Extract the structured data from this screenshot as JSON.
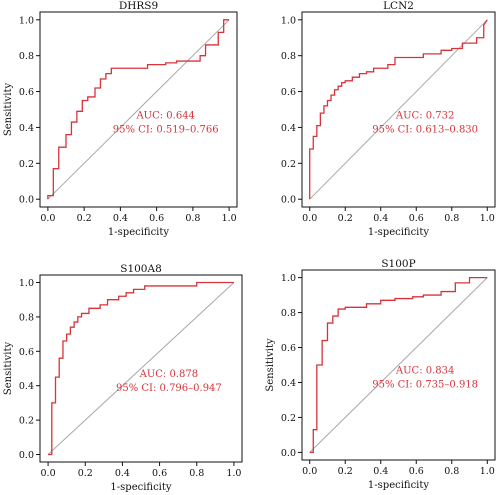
{
  "colors": {
    "roc_curve": "#d6343a",
    "reference_line": "#a8a8a8",
    "annotation": "#d6343a"
  },
  "chart_data": [
    {
      "type": "line",
      "title": "DHRS9",
      "xlabel": "1-specificity",
      "ylabel": "Sensitivity",
      "xlim": [
        0,
        1
      ],
      "ylim": [
        0,
        1
      ],
      "x_ticks": [
        "0.0",
        "0.2",
        "0.4",
        "0.6",
        "0.8",
        "1.0"
      ],
      "y_ticks": [
        "0.0",
        "0.2",
        "0.4",
        "0.6",
        "0.8",
        "1.0"
      ],
      "auc_text": "AUC: 0.644",
      "ci_text": "95% CI: 0.519–0.766",
      "grid": false,
      "series": [
        {
          "x": [
            0,
            0,
            0.03,
            0.03,
            0.06,
            0.06,
            0.1,
            0.1,
            0.13,
            0.13,
            0.16,
            0.16,
            0.19,
            0.19,
            0.22,
            0.22,
            0.26,
            0.26,
            0.29,
            0.29,
            0.32,
            0.32,
            0.35,
            0.35,
            0.42,
            0.42,
            0.55,
            0.55,
            0.65,
            0.65,
            0.71,
            0.71,
            0.84,
            0.84,
            0.87,
            0.87,
            0.94,
            0.94,
            0.97,
            0.97,
            1
          ],
          "y": [
            0,
            0.02,
            0.02,
            0.17,
            0.17,
            0.29,
            0.29,
            0.36,
            0.36,
            0.43,
            0.43,
            0.49,
            0.49,
            0.55,
            0.55,
            0.57,
            0.57,
            0.62,
            0.62,
            0.67,
            0.67,
            0.7,
            0.7,
            0.73,
            0.73,
            0.73,
            0.73,
            0.75,
            0.75,
            0.76,
            0.76,
            0.77,
            0.77,
            0.8,
            0.8,
            0.86,
            0.86,
            0.93,
            0.93,
            1,
            1
          ]
        }
      ]
    },
    {
      "type": "line",
      "title": "LCN2",
      "xlabel": "1-specificity",
      "ylabel": "",
      "xlim": [
        0,
        1
      ],
      "ylim": [
        0,
        1
      ],
      "x_ticks": [
        "0.0",
        "0.2",
        "0.4",
        "0.6",
        "0.8",
        "1.0"
      ],
      "y_ticks": [
        "0.0",
        "0.2",
        "0.4",
        "0.6",
        "0.8",
        "1.0"
      ],
      "auc_text": "AUC: 0.732",
      "ci_text": "95% CI: 0.613–0.830",
      "grid": false,
      "series": [
        {
          "x": [
            0,
            0,
            0.02,
            0.02,
            0.04,
            0.04,
            0.06,
            0.06,
            0.08,
            0.08,
            0.1,
            0.1,
            0.12,
            0.12,
            0.14,
            0.14,
            0.16,
            0.16,
            0.18,
            0.18,
            0.2,
            0.2,
            0.24,
            0.24,
            0.28,
            0.28,
            0.32,
            0.32,
            0.36,
            0.36,
            0.44,
            0.44,
            0.48,
            0.48,
            0.64,
            0.64,
            0.74,
            0.74,
            0.8,
            0.8,
            0.86,
            0.86,
            0.94,
            0.94,
            0.98,
            0.98,
            1
          ],
          "y": [
            0,
            0.28,
            0.28,
            0.35,
            0.35,
            0.41,
            0.41,
            0.48,
            0.48,
            0.52,
            0.52,
            0.55,
            0.55,
            0.58,
            0.58,
            0.61,
            0.61,
            0.63,
            0.63,
            0.65,
            0.65,
            0.66,
            0.66,
            0.68,
            0.68,
            0.7,
            0.7,
            0.71,
            0.71,
            0.73,
            0.73,
            0.75,
            0.75,
            0.79,
            0.79,
            0.81,
            0.81,
            0.83,
            0.83,
            0.84,
            0.84,
            0.87,
            0.87,
            0.9,
            0.9,
            0.97,
            1
          ]
        }
      ]
    },
    {
      "type": "line",
      "title": "S100A8",
      "xlabel": "1-specificity",
      "ylabel": "Sensitivity",
      "xlim": [
        0,
        1
      ],
      "ylim": [
        0,
        1
      ],
      "x_ticks": [
        "0.0",
        "0.2",
        "0.4",
        "0.6",
        "0.8",
        "1.0"
      ],
      "y_ticks": [
        "0.0",
        "0.2",
        "0.4",
        "0.6",
        "0.8",
        "1.0"
      ],
      "auc_text": "AUC: 0.878",
      "ci_text": "95% CI: 0.796–0.947",
      "grid": false,
      "series": [
        {
          "x": [
            0,
            0.02,
            0.02,
            0.04,
            0.04,
            0.06,
            0.06,
            0.08,
            0.08,
            0.1,
            0.1,
            0.12,
            0.12,
            0.14,
            0.14,
            0.16,
            0.16,
            0.18,
            0.18,
            0.22,
            0.22,
            0.28,
            0.28,
            0.32,
            0.32,
            0.38,
            0.38,
            0.42,
            0.42,
            0.46,
            0.46,
            0.52,
            0.52,
            0.62,
            0.62,
            0.8,
            0.8,
            1
          ],
          "y": [
            0,
            0,
            0.3,
            0.3,
            0.45,
            0.45,
            0.56,
            0.56,
            0.66,
            0.66,
            0.7,
            0.7,
            0.74,
            0.74,
            0.77,
            0.77,
            0.8,
            0.8,
            0.82,
            0.82,
            0.85,
            0.85,
            0.87,
            0.87,
            0.9,
            0.9,
            0.92,
            0.92,
            0.94,
            0.94,
            0.96,
            0.96,
            0.98,
            0.98,
            0.98,
            0.98,
            1,
            1
          ]
        }
      ]
    },
    {
      "type": "line",
      "title": "S100P",
      "xlabel": "1-specificity",
      "ylabel": "Sensitivity",
      "xlim": [
        0,
        1
      ],
      "ylim": [
        0,
        1
      ],
      "x_ticks": [
        "0.0",
        "0.2",
        "0.4",
        "0.6",
        "0.8",
        "1.0"
      ],
      "y_ticks": [
        "0.0",
        "0.2",
        "0.4",
        "0.6",
        "0.8",
        "1.0"
      ],
      "auc_text": "AUC: 0.834",
      "ci_text": "95% CI: 0.735–0.918",
      "grid": false,
      "series": [
        {
          "x": [
            0,
            0.02,
            0.02,
            0.04,
            0.04,
            0.07,
            0.07,
            0.1,
            0.1,
            0.13,
            0.13,
            0.16,
            0.16,
            0.2,
            0.2,
            0.32,
            0.32,
            0.4,
            0.4,
            0.48,
            0.48,
            0.58,
            0.58,
            0.64,
            0.64,
            0.74,
            0.74,
            0.82,
            0.82,
            0.9,
            0.9,
            1
          ],
          "y": [
            0,
            0,
            0.13,
            0.13,
            0.5,
            0.5,
            0.64,
            0.64,
            0.74,
            0.74,
            0.78,
            0.78,
            0.82,
            0.82,
            0.83,
            0.83,
            0.85,
            0.85,
            0.87,
            0.87,
            0.88,
            0.88,
            0.89,
            0.89,
            0.9,
            0.9,
            0.92,
            0.92,
            0.97,
            0.97,
            1,
            1
          ]
        }
      ]
    }
  ]
}
